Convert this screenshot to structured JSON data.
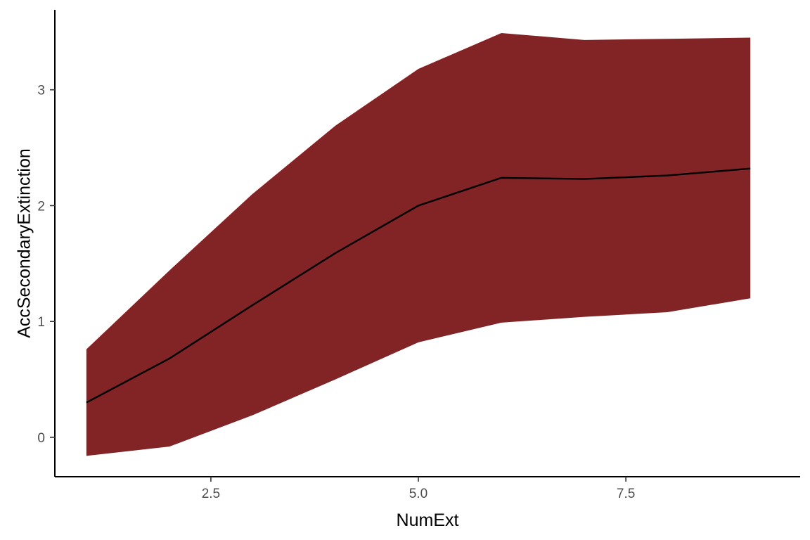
{
  "chart_data": {
    "type": "area",
    "xlabel": "NumExt",
    "ylabel": "AccSecondaryExtinction",
    "xlim": [
      0.62,
      9.6
    ],
    "ylim": [
      -0.34,
      3.69
    ],
    "x_ticks": [
      2.5,
      5.0,
      7.5
    ],
    "x_tick_labels": [
      "2.5",
      "5.0",
      "7.5"
    ],
    "y_ticks": [
      0,
      1,
      2,
      3
    ],
    "y_tick_labels": [
      "0",
      "1",
      "2",
      "3"
    ],
    "grid": false,
    "legend": "none",
    "x": [
      1,
      2,
      3,
      4,
      5,
      6,
      7,
      8,
      9
    ],
    "series": [
      {
        "values": [
          0.3,
          0.68,
          1.14,
          1.59,
          2.0,
          2.24,
          2.23,
          2.26,
          2.32
        ]
      }
    ],
    "band": {
      "lower": [
        -0.16,
        -0.08,
        0.19,
        0.5,
        0.82,
        0.99,
        1.04,
        1.08,
        1.2
      ],
      "upper": [
        0.76,
        1.44,
        2.1,
        2.69,
        3.18,
        3.49,
        3.43,
        3.44,
        3.45
      ]
    },
    "colors": {
      "band": "#822326",
      "line": "#000000",
      "axis": "#000000",
      "tick_label": "#4d4d4d"
    }
  }
}
